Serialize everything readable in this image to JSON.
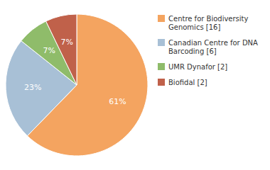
{
  "chart_data": {
    "type": "pie",
    "categories": [
      "Centre for Biodiversity\nGenomics [16]",
      "Canadian Centre for DNA\nBarcoding [6]",
      "UMR Dynafor [2]",
      "Biofidal [2]"
    ],
    "values": [
      61,
      23,
      7,
      7
    ],
    "value_labels": [
      "61%",
      "23%",
      "7%",
      "7%"
    ],
    "data_labels": true,
    "colors": [
      "#F4A460",
      "#A8C0D6",
      "#8FBC6A",
      "#C0614A"
    ],
    "legend": "right"
  }
}
